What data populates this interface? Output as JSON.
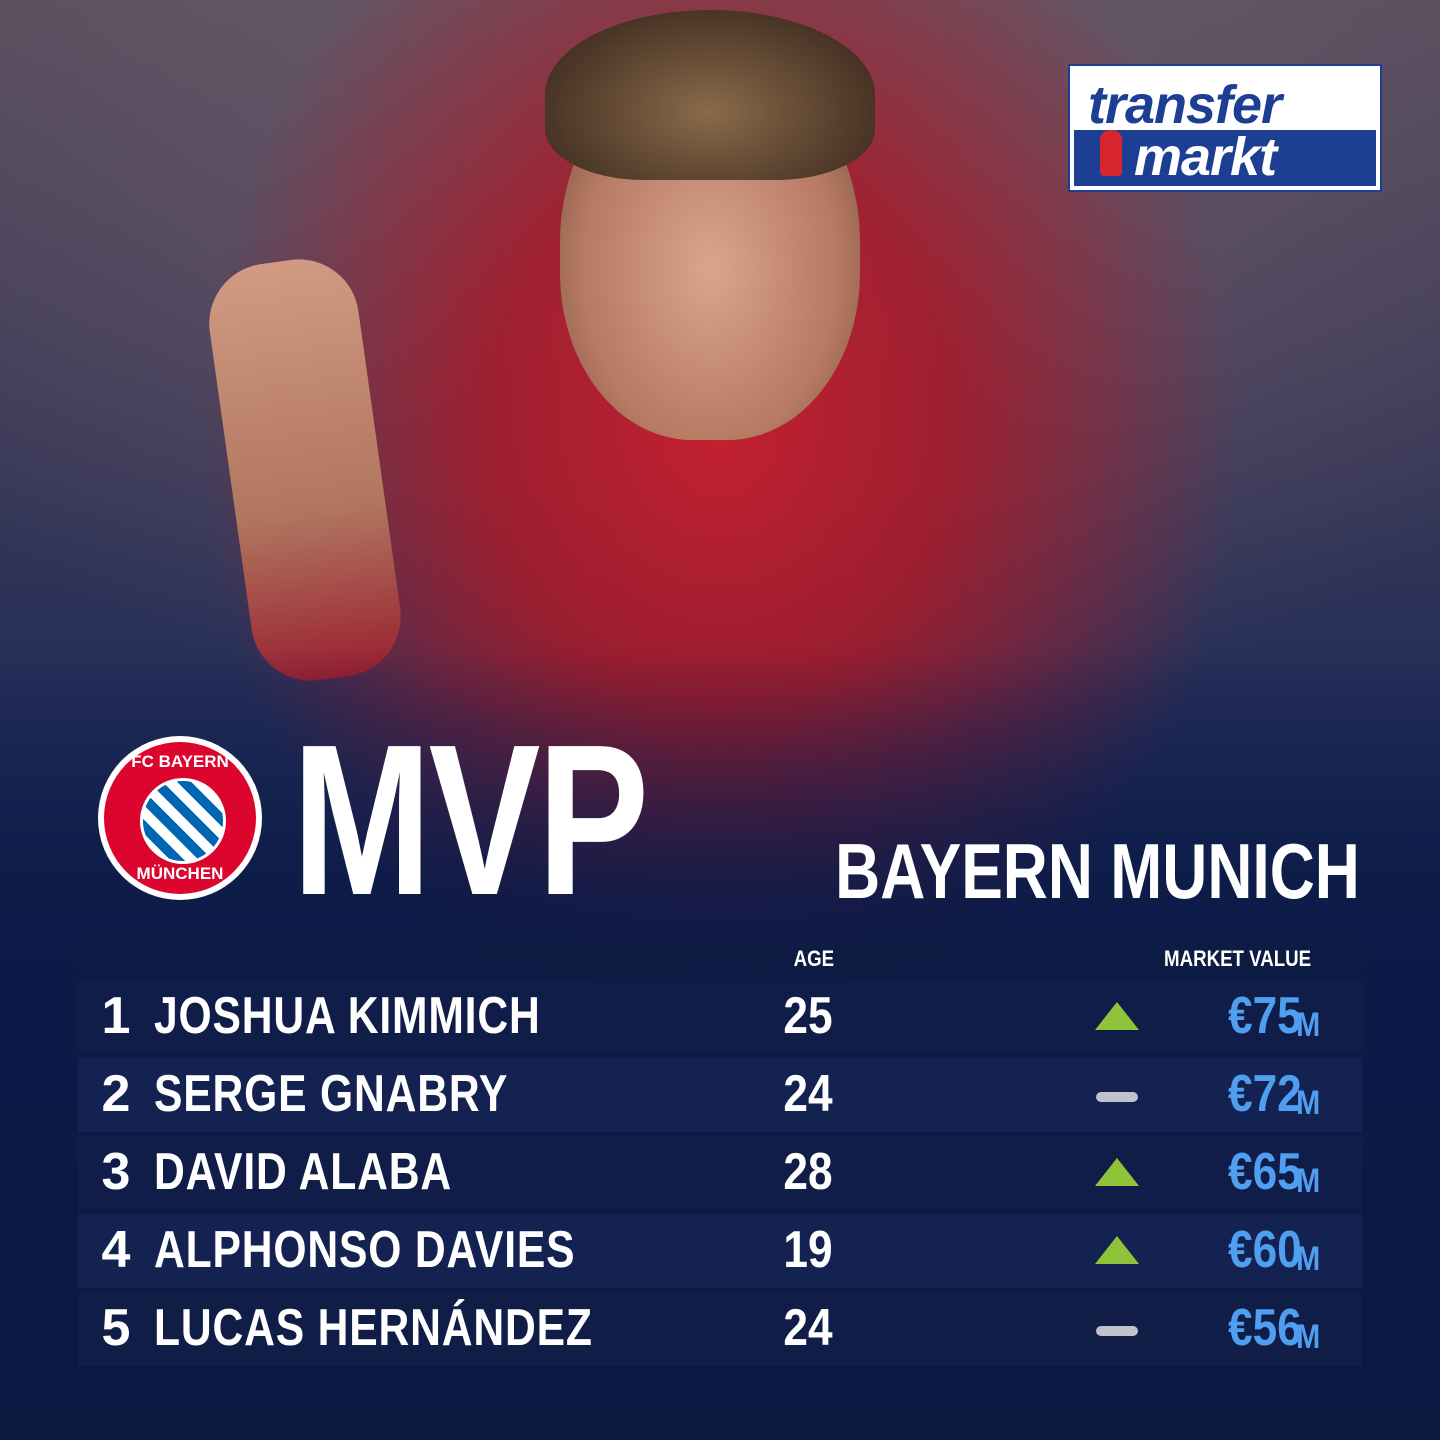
{
  "logo": {
    "line1": "transfer",
    "line2": "markt"
  },
  "badge": {
    "top": "FC BAYERN",
    "bottom": "MÜNCHEN"
  },
  "header": {
    "title": "MVP",
    "subtitle": "BAYERN MUNICH"
  },
  "table": {
    "columns": [
      "AGE",
      "MARKET VALUE"
    ],
    "rows": [
      {
        "rank": 1,
        "name": "JOSHUA KIMMICH",
        "age": 25,
        "trend": "up",
        "value": "€75",
        "unit": "M"
      },
      {
        "rank": 2,
        "name": "SERGE GNABRY",
        "age": 24,
        "trend": "flat",
        "value": "€72",
        "unit": "M"
      },
      {
        "rank": 3,
        "name": "DAVID ALABA",
        "age": 28,
        "trend": "up",
        "value": "€65",
        "unit": "M"
      },
      {
        "rank": 4,
        "name": "ALPHONSO DAVIES",
        "age": 19,
        "trend": "up",
        "value": "€60",
        "unit": "M"
      },
      {
        "rank": 5,
        "name": "LUCAS HERNÁNDEZ",
        "age": 24,
        "trend": "flat",
        "value": "€56",
        "unit": "M"
      }
    ]
  }
}
